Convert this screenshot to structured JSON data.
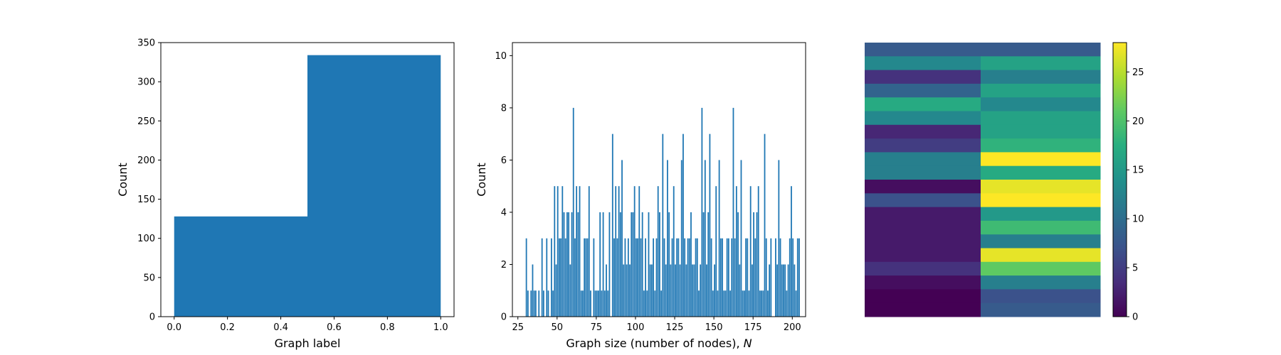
{
  "chart_data": [
    {
      "type": "bar",
      "chart": "histogram",
      "xlabel": "Graph label",
      "ylabel": "Count",
      "xlim": [
        -0.05,
        1.05
      ],
      "ylim": [
        0,
        350
      ],
      "xticks": [
        "0.0",
        "0.2",
        "0.4",
        "0.6",
        "0.8",
        "1.0"
      ],
      "yticks": [
        "0",
        "50",
        "100",
        "150",
        "200",
        "250",
        "300",
        "350"
      ],
      "bins": [
        [
          0.0,
          0.5
        ],
        [
          0.5,
          1.0
        ]
      ],
      "values": [
        128,
        334
      ],
      "color": "#1f77b4"
    },
    {
      "type": "bar",
      "chart": "histogram",
      "xlabel": "Graph size (number of nodes), ",
      "xlabel_var": "N",
      "ylabel": "Count",
      "xlim": [
        21.5,
        208.5
      ],
      "ylim": [
        0,
        10.5
      ],
      "xticks": [
        "25",
        "50",
        "75",
        "100",
        "125",
        "150",
        "175",
        "200"
      ],
      "yticks": [
        "0",
        "2",
        "4",
        "6",
        "8",
        "10"
      ],
      "x_start": 30,
      "bin_width": 1,
      "values": [
        3,
        1,
        0,
        1,
        2,
        1,
        1,
        0,
        1,
        0,
        3,
        1,
        0,
        3,
        1,
        0,
        3,
        1,
        5,
        2,
        5,
        3,
        3,
        5,
        4,
        3,
        4,
        4,
        2,
        4,
        8,
        3,
        5,
        4,
        5,
        1,
        1,
        3,
        3,
        3,
        5,
        1,
        0,
        3,
        1,
        1,
        1,
        4,
        1,
        4,
        1,
        2,
        1,
        4,
        0,
        7,
        3,
        5,
        3,
        5,
        4,
        6,
        2,
        3,
        2,
        3,
        2,
        4,
        4,
        5,
        3,
        3,
        5,
        3,
        4,
        1,
        3,
        1,
        4,
        2,
        2,
        3,
        1,
        3,
        5,
        4,
        1,
        7,
        3,
        2,
        6,
        4,
        2,
        3,
        5,
        2,
        3,
        3,
        2,
        6,
        7,
        3,
        2,
        3,
        3,
        4,
        2,
        2,
        3,
        3,
        1,
        2,
        8,
        4,
        6,
        2,
        4,
        7,
        3,
        1,
        2,
        5,
        1,
        6,
        3,
        3,
        1,
        1,
        3,
        3,
        1,
        3,
        8,
        3,
        5,
        4,
        2,
        6,
        1,
        1,
        3,
        3,
        1,
        5,
        2,
        4,
        3,
        4,
        5,
        1,
        1,
        1,
        7,
        3,
        1,
        2,
        3,
        0,
        0,
        3,
        2,
        6,
        3,
        2,
        2,
        2,
        1,
        2,
        3,
        5,
        3,
        2,
        1,
        3,
        3
      ],
      "color": "#1f77b4"
    },
    {
      "type": "heatmap",
      "colormap": "viridis",
      "vmin": 0,
      "vmax": 28,
      "colorbar_ticks": [
        "0",
        "5",
        "10",
        "15",
        "20",
        "25"
      ],
      "rows": [
        [
          8,
          8
        ],
        [
          13,
          16
        ],
        [
          4,
          12
        ],
        [
          9,
          16
        ],
        [
          17,
          13
        ],
        [
          13,
          16
        ],
        [
          3,
          16
        ],
        [
          5,
          18
        ],
        [
          12,
          28
        ],
        [
          12,
          17
        ],
        [
          1,
          27
        ],
        [
          7,
          28
        ],
        [
          2,
          15
        ],
        [
          2,
          19
        ],
        [
          2,
          12
        ],
        [
          2,
          27
        ],
        [
          4,
          21
        ],
        [
          1,
          12
        ],
        [
          0,
          7
        ],
        [
          0,
          8
        ]
      ]
    }
  ]
}
